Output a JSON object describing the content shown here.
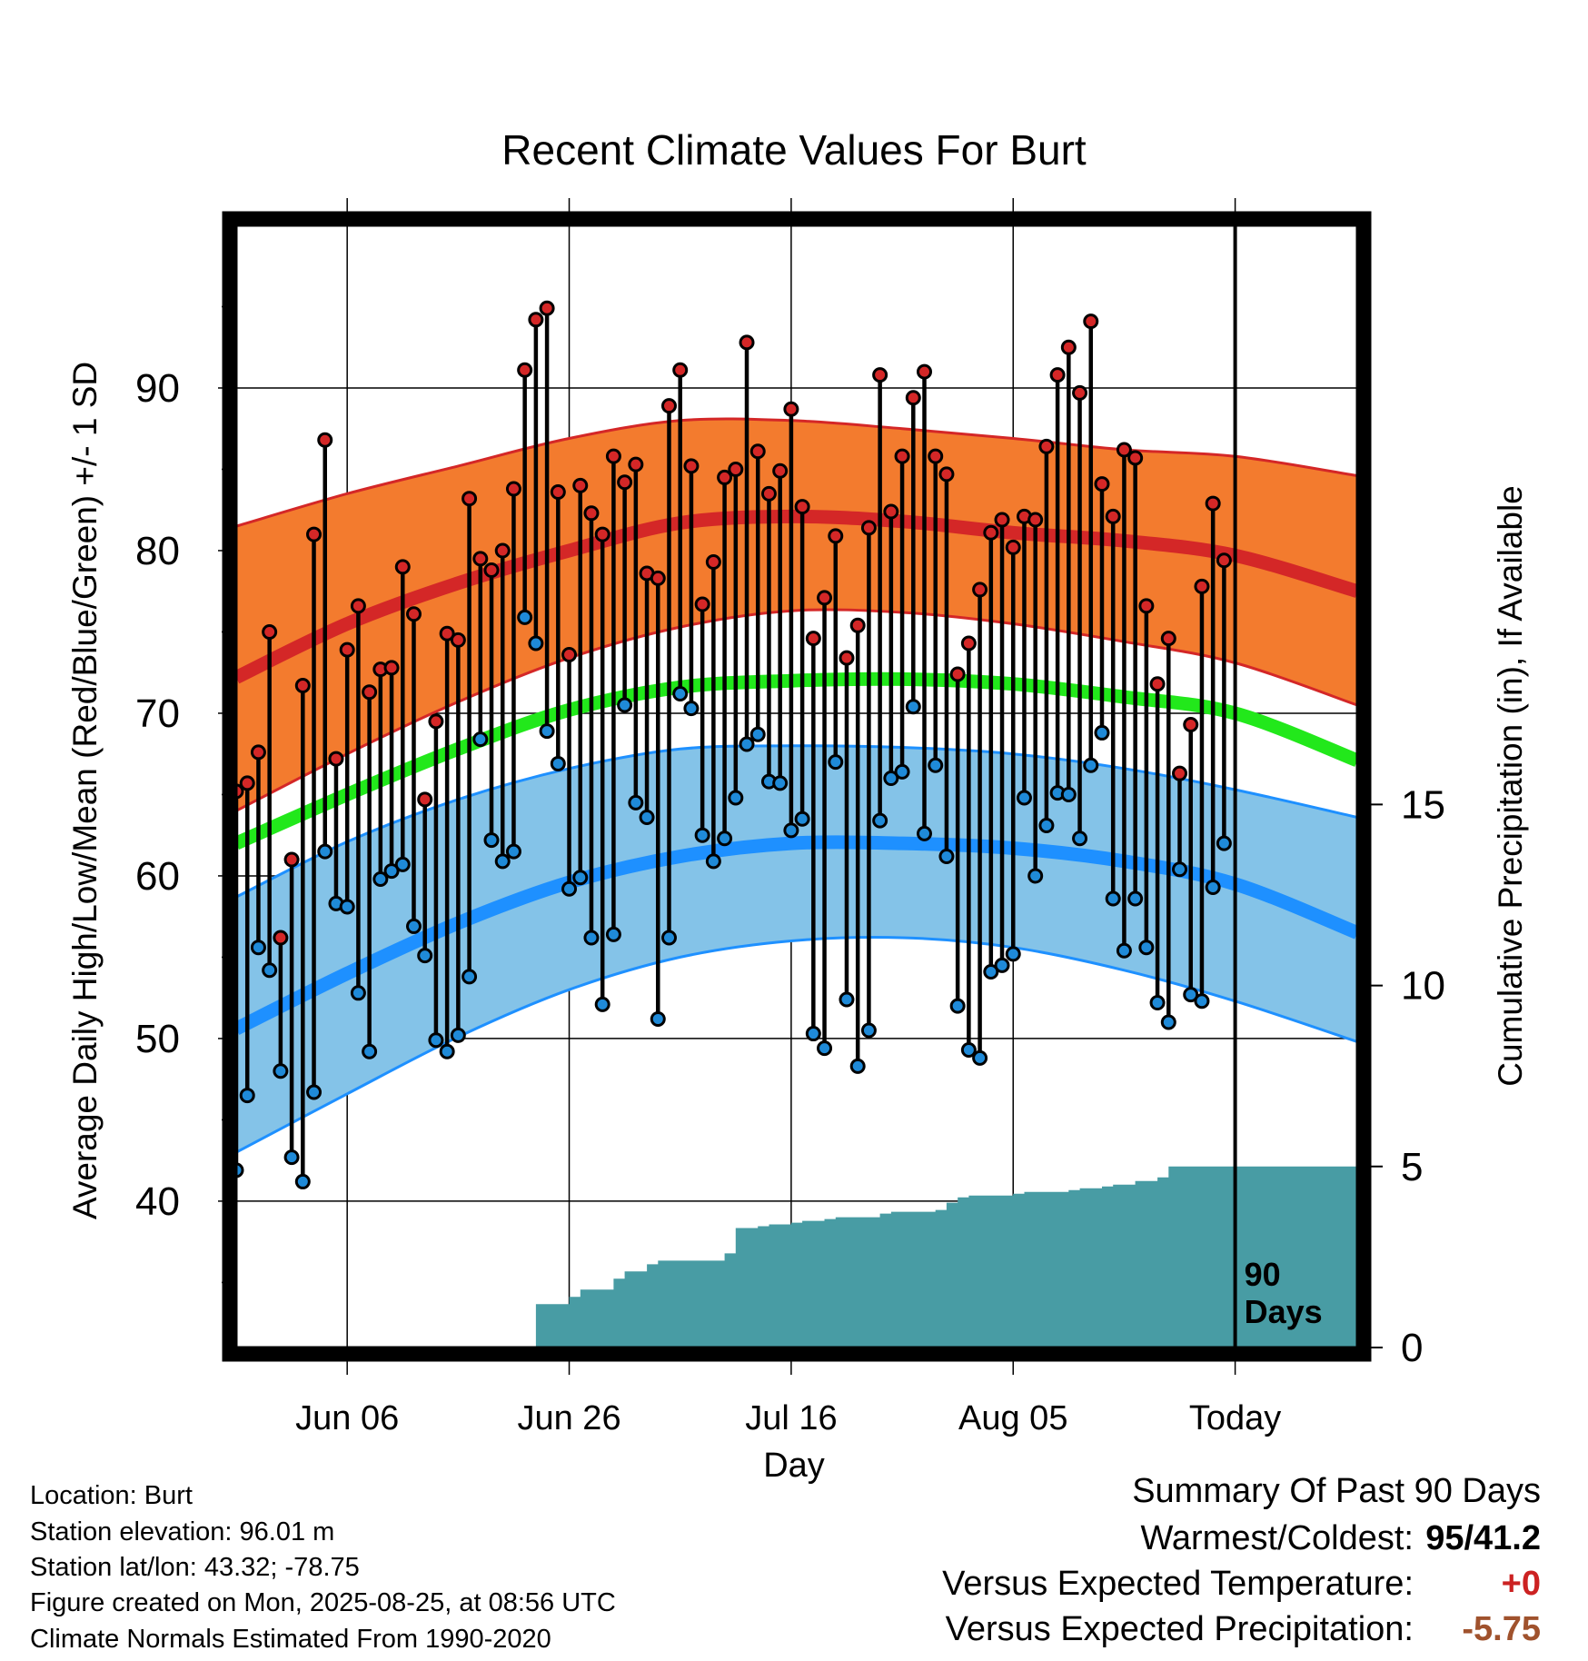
{
  "chart_data": {
    "type": "line",
    "title": "Recent Climate Values For Burt",
    "xlabel": "Day",
    "ylabel": "Average Daily High/Low/Mean (Red/Blue/Green) +/- 1 SD",
    "y2label": "Cumulative Precipitation (in), If Available",
    "xlim": [
      "2025-05-27",
      "2025-09-05"
    ],
    "ylim": [
      31,
      100
    ],
    "y2lim": [
      0,
      31
    ],
    "x_tick_labels": [
      "Jun 06",
      "Jun 26",
      "Jul 16",
      "Aug 05",
      "Today"
    ],
    "x_tick_dates": [
      "2025-06-06",
      "2025-06-26",
      "2025-07-16",
      "2025-08-05",
      "2025-08-25"
    ],
    "y_ticks": [
      40,
      50,
      60,
      70,
      80,
      90
    ],
    "y2_ticks": [
      0,
      5,
      10,
      15
    ],
    "grid": true,
    "today": "2025-08-25",
    "today_label": "90 Days",
    "colors": {
      "high_band": "#f37b2e",
      "high_line": "#d42727",
      "low_band": "#84c3e8",
      "low_line": "#1e90ff",
      "mean_line": "#22e81b",
      "precip_fill": "#489ca4",
      "high_marker": "#d42727",
      "low_marker": "#1f8ad8"
    },
    "normals": {
      "dates": [
        "2025-05-27",
        "2025-06-06",
        "2025-06-16",
        "2025-06-26",
        "2025-07-06",
        "2025-07-16",
        "2025-07-26",
        "2025-08-05",
        "2025-08-15",
        "2025-08-25",
        "2025-09-05"
      ],
      "high_mean": [
        72.2,
        75.5,
        78.0,
        80.0,
        81.7,
        82.1,
        81.8,
        81.1,
        80.6,
        79.7,
        77.5
      ],
      "high_sd_upper": [
        81.5,
        83.5,
        85.2,
        86.9,
        88.0,
        88.0,
        87.5,
        86.9,
        86.2,
        85.8,
        84.6
      ],
      "high_sd_lower": [
        64.0,
        67.5,
        70.7,
        73.4,
        75.3,
        76.3,
        76.2,
        75.5,
        74.4,
        73.1,
        70.5
      ],
      "mean_line": [
        62.0,
        65.0,
        67.8,
        70.2,
        71.6,
        72.0,
        72.1,
        71.8,
        71.0,
        70.0,
        67.1
      ],
      "low_mean": [
        50.6,
        54.0,
        57.1,
        59.6,
        61.2,
        62.0,
        62.0,
        61.7,
        60.9,
        59.5,
        56.5
      ],
      "low_sd_upper": [
        58.7,
        62.1,
        64.7,
        66.6,
        67.8,
        68.0,
        67.9,
        67.5,
        66.6,
        65.3,
        63.6
      ],
      "low_sd_lower": [
        43.0,
        46.6,
        50.1,
        53.0,
        55.0,
        56.0,
        56.2,
        55.6,
        54.2,
        52.3,
        49.8
      ]
    },
    "daily": {
      "start_date": "2025-05-27",
      "high": [
        65.2,
        65.7,
        67.6,
        75.0,
        56.2,
        61.0,
        71.7,
        81.0,
        86.8,
        67.2,
        73.9,
        76.6,
        71.3,
        72.7,
        72.8,
        79.0,
        76.1,
        64.7,
        69.5,
        74.9,
        74.5,
        83.2,
        79.5,
        78.8,
        80.0,
        83.8,
        91.1,
        94.2,
        94.9,
        83.6,
        73.6,
        84.0,
        82.3,
        81.0,
        85.8,
        84.2,
        85.3,
        78.6,
        78.3,
        88.9,
        91.1,
        85.2,
        76.7,
        79.3,
        84.5,
        85.0,
        92.8,
        86.1,
        83.5,
        84.9,
        88.7,
        82.7,
        74.6,
        77.1,
        80.9,
        73.4,
        75.4,
        81.4,
        90.8,
        82.4,
        85.8,
        89.4,
        91.0,
        85.8,
        84.7,
        72.4,
        74.3,
        77.6,
        81.1,
        81.9,
        80.2,
        82.1,
        81.9,
        86.4,
        90.8,
        92.5,
        89.7,
        94.1,
        84.1,
        82.1,
        86.2,
        85.7,
        76.6,
        71.8,
        74.6,
        66.3,
        69.3,
        77.8,
        82.9,
        79.4
      ],
      "low": [
        41.9,
        46.5,
        55.6,
        54.2,
        48.0,
        42.7,
        41.2,
        46.7,
        61.5,
        58.3,
        58.1,
        52.8,
        49.2,
        59.8,
        60.3,
        60.7,
        56.9,
        55.1,
        49.9,
        49.2,
        50.2,
        53.8,
        68.4,
        62.2,
        60.9,
        61.5,
        75.9,
        74.3,
        68.9,
        66.9,
        59.2,
        59.9,
        56.2,
        52.1,
        56.4,
        70.5,
        64.5,
        63.6,
        51.2,
        56.2,
        71.2,
        70.3,
        62.5,
        60.9,
        62.3,
        64.8,
        68.1,
        68.7,
        65.8,
        65.7,
        62.8,
        63.5,
        50.3,
        49.4,
        67.0,
        52.4,
        48.3,
        50.5,
        63.4,
        66.0,
        66.4,
        70.4,
        62.6,
        66.8,
        61.2,
        52.0,
        49.3,
        48.8,
        54.1,
        54.5,
        55.2,
        64.8,
        60.0,
        63.1,
        65.1,
        65.0,
        62.3,
        66.8,
        68.8,
        58.6,
        55.4,
        58.6,
        55.6,
        52.2,
        51.0,
        60.4,
        52.7,
        52.3,
        59.3,
        62.0
      ]
    },
    "precip_cumulative": {
      "dates": [
        "2025-06-17",
        "2025-06-23",
        "2025-06-26",
        "2025-06-27",
        "2025-06-30",
        "2025-07-01",
        "2025-07-03",
        "2025-07-04",
        "2025-07-09",
        "2025-07-10",
        "2025-07-11",
        "2025-07-13",
        "2025-07-14",
        "2025-07-16",
        "2025-07-17",
        "2025-07-19",
        "2025-07-20",
        "2025-07-24",
        "2025-07-25",
        "2025-07-29",
        "2025-07-30",
        "2025-07-31",
        "2025-08-01",
        "2025-08-05",
        "2025-08-06",
        "2025-08-10",
        "2025-08-11",
        "2025-08-13",
        "2025-08-14",
        "2025-08-16",
        "2025-08-18",
        "2025-08-19",
        "2025-08-25",
        "2025-09-04"
      ],
      "values": [
        0.0,
        1.2,
        1.4,
        1.6,
        1.9,
        2.1,
        2.3,
        2.4,
        2.4,
        2.6,
        3.3,
        3.35,
        3.4,
        3.45,
        3.5,
        3.55,
        3.6,
        3.7,
        3.75,
        3.8,
        4.0,
        4.15,
        4.2,
        4.25,
        4.3,
        4.35,
        4.4,
        4.45,
        4.5,
        4.6,
        4.7,
        5.0,
        5.0,
        5.0
      ]
    }
  },
  "footer": {
    "location": "Location: Burt",
    "elevation": "Station elevation: 96.01 m",
    "latlon": "Station lat/lon: 43.32; -78.75",
    "created": "Figure created on Mon, 2025-08-25, at 08:56 UTC",
    "normals": "Climate Normals Estimated From 1990-2020"
  },
  "summary": {
    "title": "Summary Of Past 90 Days",
    "warmest_label": "Warmest/Coldest:",
    "warmest_value": "95/41.2",
    "temp_label": "Versus Expected Temperature:",
    "temp_value": "+0",
    "temp_color": "#cc2222",
    "precip_label": "Versus Expected Precipitation:",
    "precip_value": "-5.75",
    "precip_color": "#a0522d"
  }
}
